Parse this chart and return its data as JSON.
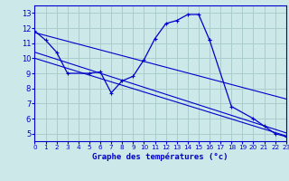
{
  "background_color": "#cce8e8",
  "grid_color": "#aacccc",
  "line_color": "#0000cc",
  "xlabel": "Graphe des températures (°c)",
  "xlim": [
    0,
    23
  ],
  "ylim": [
    4.5,
    13.5
  ],
  "xticks": [
    0,
    1,
    2,
    3,
    4,
    5,
    6,
    7,
    8,
    9,
    10,
    11,
    12,
    13,
    14,
    15,
    16,
    17,
    18,
    19,
    20,
    21,
    22,
    23
  ],
  "yticks": [
    5,
    6,
    7,
    8,
    9,
    10,
    11,
    12,
    13
  ],
  "seg1_x": [
    0,
    1,
    2,
    3,
    5,
    6,
    7,
    8,
    9,
    10,
    11,
    12,
    13,
    14,
    15,
    16
  ],
  "seg1_y": [
    11.8,
    11.2,
    10.4,
    9.0,
    9.0,
    9.1,
    7.7,
    8.5,
    8.8,
    9.9,
    11.3,
    12.3,
    12.5,
    12.9,
    12.9,
    11.2
  ],
  "seg2_x": [
    16,
    18,
    20,
    21,
    22,
    23
  ],
  "seg2_y": [
    11.2,
    6.8,
    6.0,
    5.5,
    5.0,
    4.8
  ],
  "trend1_x": [
    0,
    23
  ],
  "trend1_y": [
    11.7,
    7.3
  ],
  "trend2_x": [
    0,
    23
  ],
  "trend2_y": [
    10.4,
    5.05
  ],
  "trend3_x": [
    0,
    23
  ],
  "trend3_y": [
    10.0,
    4.85
  ]
}
